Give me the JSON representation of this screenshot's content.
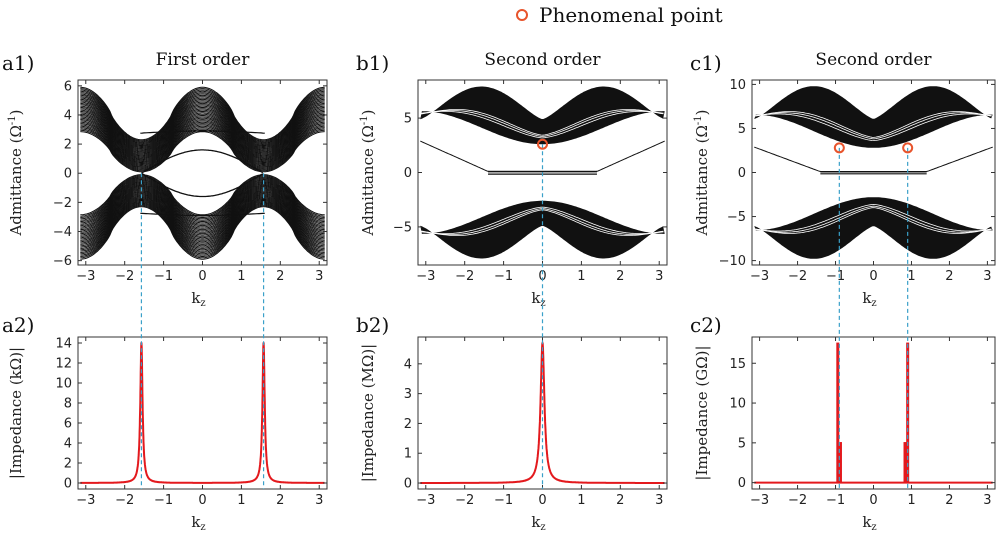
{
  "legend": {
    "label": "Phenomenal point",
    "marker_color": "#e8542c"
  },
  "colors": {
    "band": "#111111",
    "impedance": "#e3191d",
    "guide": "#3aa0c9",
    "point": "#e8542c"
  },
  "chart_data": [
    {
      "id": "a1",
      "panel_label": "a1)",
      "title": "First order",
      "type": "line",
      "description": "Admittance band spectrum vs kz",
      "xlabel": "k",
      "xlabel_sub": "z",
      "ylabel": "Admittance (Ω",
      "ylabel_sup": "-1",
      "ylabel_end": ")",
      "xlim": [
        -3.2,
        3.2
      ],
      "ylim": [
        -6.3,
        6.4
      ],
      "xticks": [
        -3,
        -2,
        -1,
        0,
        1,
        2,
        3
      ],
      "yticks": [
        -6,
        -4,
        -2,
        0,
        2,
        4,
        6
      ],
      "bands": {
        "upper_outer": [
          2.3,
          5.9
        ],
        "upper_inner_center": 2.9,
        "edge_amp": 1.6,
        "touch_k": [
          -1.57,
          1.57
        ]
      },
      "guides_x": [
        -1.57,
        1.57
      ],
      "phenomenal_points": []
    },
    {
      "id": "b1",
      "panel_label": "b1)",
      "title": "Second order",
      "type": "line",
      "description": "Admittance band spectrum vs kz",
      "xlabel": "k",
      "xlabel_sub": "z",
      "ylabel": "Admittance (Ω",
      "ylabel_sup": "-1",
      "ylabel_end": ")",
      "xlim": [
        -3.2,
        3.2
      ],
      "ylim": [
        -8.5,
        8.5
      ],
      "xticks": [
        -3,
        -2,
        -1,
        0,
        1,
        2,
        3
      ],
      "yticks": [
        -5,
        0,
        5
      ],
      "bands": {
        "outer": 7.9,
        "inner_min": 2.6,
        "flat_half_width": 1.4
      },
      "guides_x": [
        0
      ],
      "phenomenal_points": [
        {
          "x": 0,
          "y": 2.6
        }
      ]
    },
    {
      "id": "c1",
      "panel_label": "c1)",
      "title": "Second order",
      "type": "line",
      "description": "Admittance band spectrum vs kz",
      "xlabel": "k",
      "xlabel_sub": "z",
      "ylabel": "Admittance (Ω",
      "ylabel_sup": "-1",
      "ylabel_end": ")",
      "xlim": [
        -3.2,
        3.2
      ],
      "ylim": [
        -10.5,
        10.5
      ],
      "xticks": [
        -3,
        -2,
        -1,
        0,
        1,
        2,
        3
      ],
      "yticks": [
        -10,
        -5,
        0,
        5,
        10
      ],
      "bands": {
        "outer": 9.8,
        "inner_min": 2.8,
        "flat_half_width": 1.4
      },
      "guides_x": [
        -0.9,
        0.9
      ],
      "phenomenal_points": [
        {
          "x": -0.9,
          "y": 2.8
        },
        {
          "x": 0.9,
          "y": 2.8
        }
      ]
    },
    {
      "id": "a2",
      "panel_label": "a2)",
      "type": "line",
      "xlabel": "k",
      "xlabel_sub": "z",
      "ylabel": "|Impedance (kΩ)|",
      "xlim": [
        -3.2,
        3.2
      ],
      "ylim": [
        -0.6,
        14.6
      ],
      "xticks": [
        -3,
        -2,
        -1,
        0,
        1,
        2,
        3
      ],
      "yticks": [
        0,
        2,
        4,
        6,
        8,
        10,
        12,
        14
      ],
      "peaks": [
        {
          "x": -1.57,
          "height": 14,
          "width": 0.035
        },
        {
          "x": 1.57,
          "height": 14,
          "width": 0.035
        }
      ]
    },
    {
      "id": "b2",
      "panel_label": "b2)",
      "type": "line",
      "xlabel": "k",
      "xlabel_sub": "z",
      "ylabel": "|Impedance (MΩ)|",
      "xlim": [
        -3.2,
        3.2
      ],
      "ylim": [
        -0.2,
        4.9
      ],
      "xticks": [
        -3,
        -2,
        -1,
        0,
        1,
        2,
        3
      ],
      "yticks": [
        0,
        1,
        2,
        3,
        4
      ],
      "peaks": [
        {
          "x": 0,
          "height": 4.7,
          "width": 0.06
        }
      ]
    },
    {
      "id": "c2",
      "panel_label": "c2)",
      "type": "line",
      "xlabel": "k",
      "xlabel_sub": "z",
      "ylabel": "|Impedance (GΩ)|",
      "xlim": [
        -3.2,
        3.2
      ],
      "ylim": [
        -0.8,
        18.3
      ],
      "xticks": [
        -3,
        -2,
        -1,
        0,
        1,
        2,
        3
      ],
      "yticks": [
        0,
        5,
        10,
        15
      ],
      "spikes": [
        {
          "x": -0.94,
          "height": 17.6
        },
        {
          "x": -0.87,
          "height": 5.1
        },
        {
          "x": 0.83,
          "height": 5.1
        },
        {
          "x": 0.9,
          "height": 17.6
        }
      ]
    }
  ]
}
